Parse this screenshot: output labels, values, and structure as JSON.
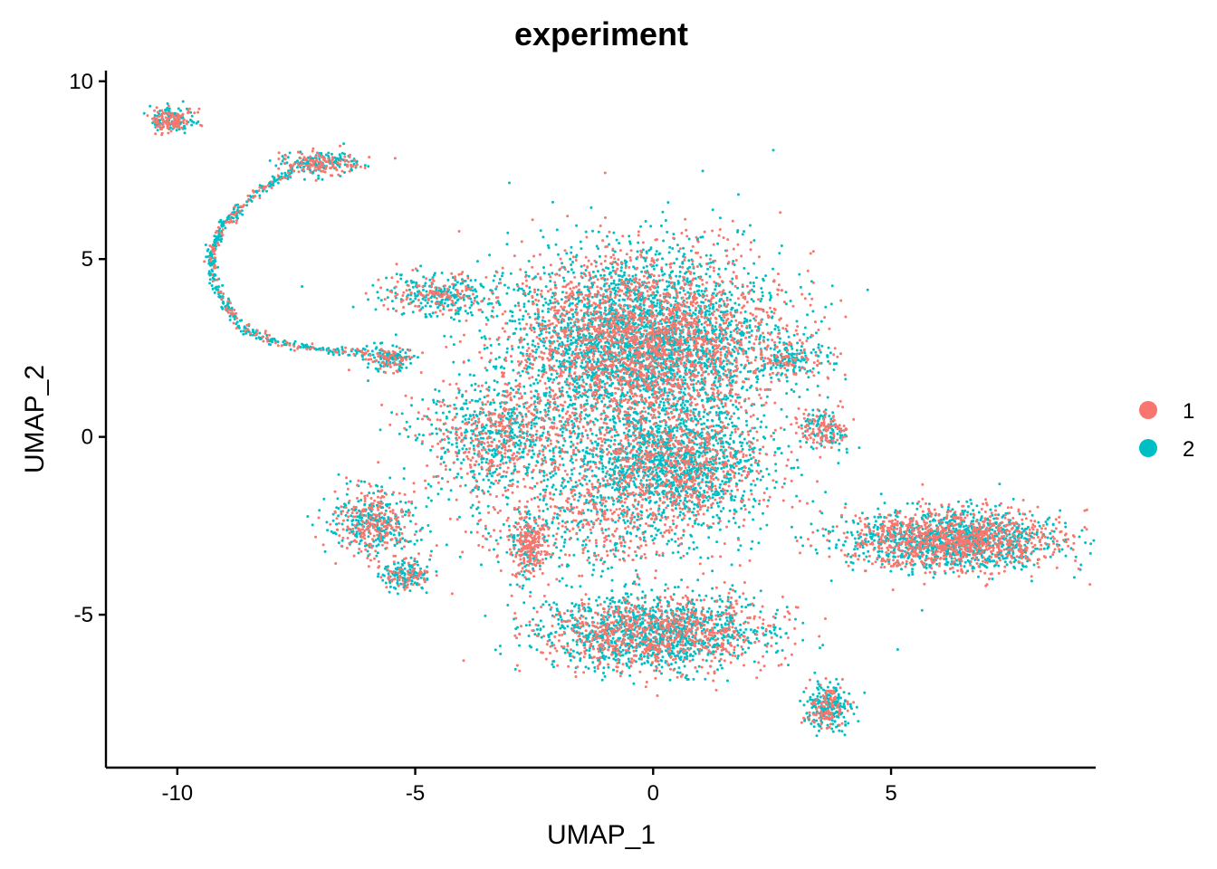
{
  "chart_data": {
    "type": "scatter",
    "title": "experiment",
    "xlabel": "UMAP_1",
    "ylabel": "UMAP_2",
    "xlim": [
      -11.5,
      9.3
    ],
    "ylim": [
      -9.3,
      10.3
    ],
    "x_ticks": [
      -10,
      -5,
      0,
      5
    ],
    "y_ticks": [
      -5,
      0,
      5,
      10
    ],
    "x_tick_labels": [
      "-10",
      "-5",
      "0",
      "5"
    ],
    "y_tick_labels": [
      "-5",
      "0",
      "5",
      "10"
    ],
    "grid": false,
    "legend_position": "right",
    "series": [
      {
        "name": "1",
        "color": "#F8766D"
      },
      {
        "name": "2",
        "color": "#00BFC4"
      }
    ],
    "clusters": [
      {
        "cx": -0.2,
        "cy": 2.6,
        "sx": 1.9,
        "sy": 1.7,
        "n": 5200,
        "mix": 0.42
      },
      {
        "cx": 0.4,
        "cy": -0.8,
        "sx": 1.3,
        "sy": 1.0,
        "n": 1800,
        "mix": 0.35
      },
      {
        "cx": -3.2,
        "cy": 0.0,
        "sx": 1.1,
        "sy": 1.0,
        "n": 900,
        "mix": 0.4
      },
      {
        "cx": -5.9,
        "cy": -2.4,
        "sx": 0.6,
        "sy": 0.6,
        "n": 500,
        "mix": 0.45
      },
      {
        "cx": -5.2,
        "cy": -3.9,
        "sx": 0.35,
        "sy": 0.25,
        "n": 200,
        "mix": 0.3
      },
      {
        "cx": -4.5,
        "cy": 4.0,
        "sx": 0.8,
        "sy": 0.4,
        "n": 350,
        "mix": 0.35
      },
      {
        "cx": -10.1,
        "cy": 8.9,
        "sx": 0.3,
        "sy": 0.25,
        "n": 220,
        "mix": 0.45
      },
      {
        "cx": -7.0,
        "cy": 7.7,
        "sx": 0.55,
        "sy": 0.22,
        "n": 260,
        "mix": 0.4
      },
      {
        "cx": -5.5,
        "cy": 2.2,
        "sx": 0.35,
        "sy": 0.25,
        "n": 150,
        "mix": 0.3
      },
      {
        "cx": 0.0,
        "cy": -5.5,
        "sx": 1.6,
        "sy": 0.7,
        "n": 1900,
        "mix": 0.4
      },
      {
        "cx": -2.6,
        "cy": -3.1,
        "sx": 0.22,
        "sy": 0.6,
        "n": 260,
        "mix": 0.75
      },
      {
        "cx": 6.3,
        "cy": -2.9,
        "sx": 1.5,
        "sy": 0.55,
        "n": 2000,
        "mix": 0.45
      },
      {
        "cx": 3.6,
        "cy": 0.2,
        "sx": 0.35,
        "sy": 0.35,
        "n": 200,
        "mix": 0.55
      },
      {
        "cx": 3.7,
        "cy": -7.6,
        "sx": 0.3,
        "sy": 0.45,
        "n": 300,
        "mix": 0.3
      },
      {
        "cx": 2.9,
        "cy": 2.2,
        "sx": 0.4,
        "sy": 0.25,
        "n": 150,
        "mix": 0.3
      },
      {
        "cx": -1.2,
        "cy": -2.4,
        "sx": 1.8,
        "sy": 1.0,
        "n": 700,
        "mix": 0.5
      }
    ],
    "trajectory": [
      [
        -5.2,
        2.2
      ],
      [
        -6.5,
        2.4
      ],
      [
        -7.8,
        2.6
      ],
      [
        -8.7,
        3.1
      ],
      [
        -9.2,
        4.2
      ],
      [
        -9.3,
        5.2
      ],
      [
        -9.0,
        6.0
      ],
      [
        -8.4,
        6.8
      ],
      [
        -7.6,
        7.5
      ]
    ]
  }
}
